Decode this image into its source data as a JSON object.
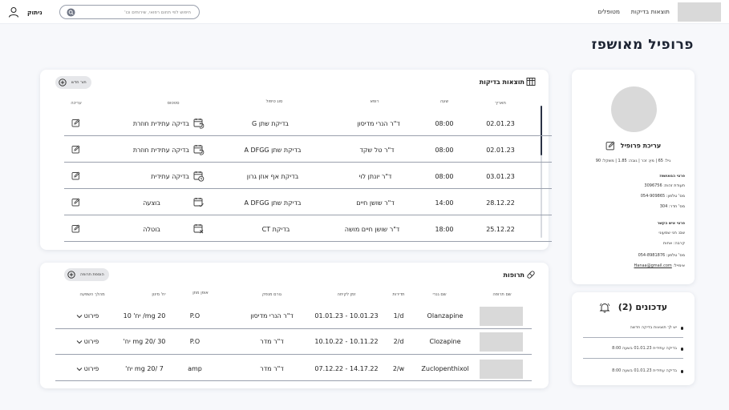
{
  "topbar": {
    "nav_results": "תוצאות בדיקות",
    "nav_treatments": "מטופלים",
    "user_name": "ניתוק",
    "search_placeholder": "חיפוש לפי תחום רפואי, שירותים וכו'"
  },
  "page_title": "פרופיל מאושפז",
  "tests": {
    "title": "תוצאות בדיקות",
    "new_button": "תור חדש",
    "headers": {
      "date": "תאריך",
      "time": "שעה",
      "doctor": "רופא",
      "treatment_type": "סוג טיפול",
      "status": "סטטוס",
      "edit": "עריכה"
    },
    "rows": [
      {
        "date": "02.01.23",
        "time": "08:00",
        "doctor": "ד\"ר הנרי מדיסון",
        "type": "בדיקת שתן G",
        "status": "בדיקה עתידית חוזרת",
        "status_icon": "calendar-repeat-icon"
      },
      {
        "date": "02.01.23",
        "time": "08:00",
        "doctor": "ד\"ר טל שקד",
        "type": "בדיקת שתן A DFGG",
        "status": "בדיקה עתידית חוזרת",
        "status_icon": "calendar-repeat-icon"
      },
      {
        "date": "03.01.23",
        "time": "08:00",
        "doctor": "ד\"ר יונתן לוי",
        "type": "בדיקת אף אוזן גרון",
        "status": "בדיקה עתידית",
        "status_icon": "calendar-clock-icon"
      },
      {
        "date": "28.12.22",
        "time": "14:00",
        "doctor": "ד\"ר שושן חיים",
        "type": "בדיקת שתן A DFGG",
        "status": "בוצעה",
        "status_icon": "calendar-check-icon"
      },
      {
        "date": "25.12.22",
        "time": "18:00",
        "doctor": "ד\"ר שושן חיים מושה",
        "type": "בדיקת CT",
        "status": "בוטלה",
        "status_icon": "calendar-x-icon"
      }
    ]
  },
  "meds": {
    "title": "תרופות",
    "add_button": "הוספת תרופה",
    "headers": {
      "image": "שם תרופה",
      "trade_name": "שם גנרי",
      "frequency": "תדירות",
      "period": "זמן לקיחה",
      "prescriber": "גורם מנפק",
      "route": "אופן מתן",
      "dose": "יח' מינון",
      "details": "מהלך השפעה"
    },
    "rows": [
      {
        "name": "Olanzapine",
        "frequency": "1/d",
        "period": "01.01.23 - 10.01.23",
        "prescriber": "ד\"ר הנרי מדיסון",
        "route": "P.O",
        "dose": "mg 20/ יח' 10",
        "details": "פירוט"
      },
      {
        "name": "Clozapine",
        "frequency": "2/d",
        "period": "10.10.22 - 10.11.22",
        "prescriber": "ד\"ר מדר",
        "route": "P.O",
        "dose": "mg 20/ 30 יח'",
        "details": "פירוט"
      },
      {
        "name": "Zuclopenthixol",
        "frequency": "2/w",
        "period": "07.12.22 - 14.17.22",
        "prescriber": "ד\"ר מדר",
        "route": "amp",
        "dose": "mg 20/ 7 יח'",
        "details": "פירוט"
      }
    ]
  },
  "profile": {
    "edit_label": "עריכת פרופיל",
    "stats": "גיל: 65 | מין: זכר | גובה: 1.85 | משקל: 90",
    "personal_head": "פרטי המאושפז",
    "id_number": "תעודת זהות: 3096756",
    "phone": "מס' טלפון: 054-909865",
    "room": "מס' חדר: 304",
    "contact_head": "פרטי איש הקשר",
    "contact_name": "שם: חני שמעוני",
    "relation": "קרבה: אחות",
    "contact_phone": "מס' טלפון: 054-8981876",
    "email_label": "אימייל:",
    "email": "Hanaa@gmail.com"
  },
  "notifications": {
    "title": "עדכונים (2)",
    "items": [
      "יש לך תוצאות בדיקה חדשה",
      "בדיקה עתידית 01.01.23 בשעה 8:00",
      "בדיקה עתידית 01.01.23 בשעה 8:00"
    ]
  },
  "colors": {
    "divider": "#9aa0ad",
    "placeholder_image": "#d9d9d9",
    "scroll_thumb": "#2a3245"
  }
}
